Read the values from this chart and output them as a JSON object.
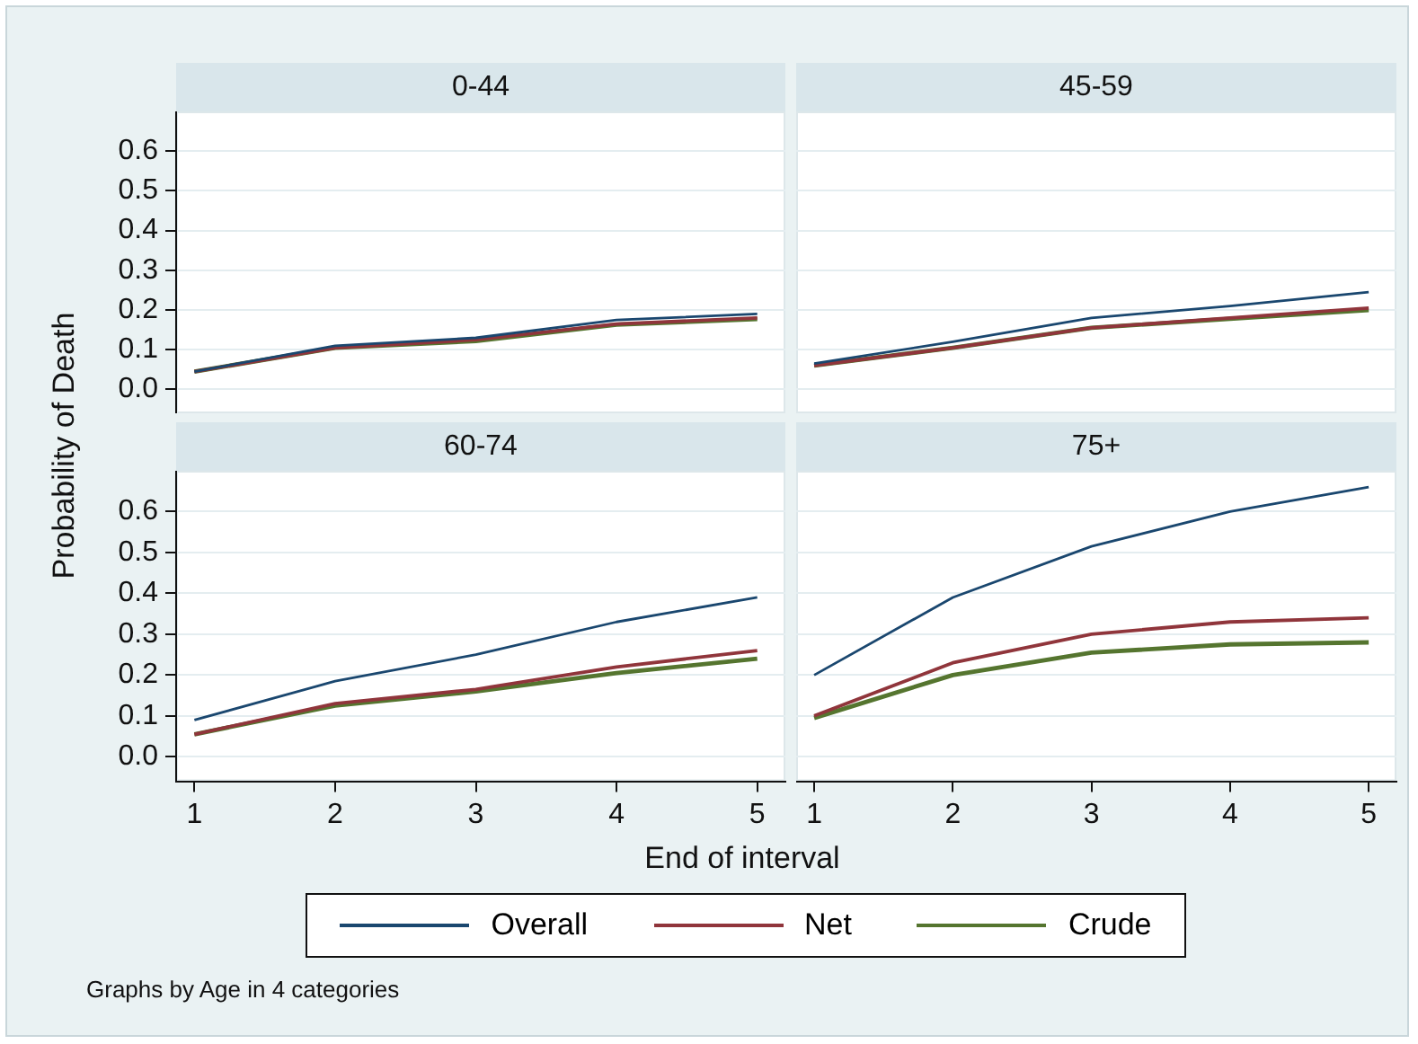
{
  "chart_data": [
    {
      "type": "line",
      "title": "0-44",
      "ylabel": "Probability of Death",
      "legend": "bottom",
      "annotations": [
        "Graphs by Age in 4 categories"
      ],
      "x": [
        1,
        2,
        3,
        4,
        5
      ],
      "xlim": [
        0.87,
        5.2
      ],
      "xticks": [
        1,
        2,
        3,
        4,
        5
      ],
      "ylim": [
        -0.06,
        0.7
      ],
      "yticks": [
        {
          "value": 0,
          "label": "0.0"
        },
        0.1,
        0.2,
        0.3,
        0.4,
        0.5,
        0.6
      ],
      "grid": "y",
      "tick_labels": "y",
      "series": [
        {
          "name": "Overall",
          "color": "#1a476f",
          "values": [
            0.045,
            0.11,
            0.13,
            0.175,
            0.19
          ]
        },
        {
          "name": "Net",
          "color": "#90353b",
          "values": [
            0.045,
            0.105,
            0.125,
            0.165,
            0.18
          ]
        },
        {
          "name": "Crude",
          "color": "#55752f",
          "values": [
            0.045,
            0.105,
            0.122,
            0.163,
            0.177
          ]
        }
      ]
    },
    {
      "type": "line",
      "title": "45-59",
      "x": [
        1,
        2,
        3,
        4,
        5
      ],
      "xlim": [
        0.87,
        5.2
      ],
      "xticks": [
        1,
        2,
        3,
        4,
        5
      ],
      "ylim": [
        -0.06,
        0.7
      ],
      "yticks": [
        0,
        0.1,
        0.2,
        0.3,
        0.4,
        0.5,
        0.6
      ],
      "grid": "y",
      "tick_labels": false,
      "series": [
        {
          "color": "#1a476f",
          "values": [
            0.065,
            0.12,
            0.18,
            0.21,
            0.245
          ]
        },
        {
          "color": "#90353b",
          "values": [
            0.06,
            0.105,
            0.155,
            0.18,
            0.205
          ]
        },
        {
          "color": "#55752f",
          "values": [
            0.06,
            0.105,
            0.155,
            0.178,
            0.2
          ]
        }
      ]
    },
    {
      "type": "line",
      "title": "60-74",
      "xlabel": "End of interval",
      "x": [
        1,
        2,
        3,
        4,
        5
      ],
      "xlim": [
        0.87,
        5.2
      ],
      "xticks": [
        1,
        2,
        3,
        4,
        5
      ],
      "ylim": [
        -0.06,
        0.7
      ],
      "yticks": [
        {
          "value": 0,
          "label": "0.0"
        },
        0.1,
        0.2,
        0.3,
        0.4,
        0.5,
        0.6
      ],
      "grid": "y",
      "series": [
        {
          "color": "#1a476f",
          "values": [
            0.09,
            0.185,
            0.25,
            0.33,
            0.39
          ]
        },
        {
          "color": "#90353b",
          "values": [
            0.055,
            0.13,
            0.165,
            0.22,
            0.26
          ]
        },
        {
          "color": "#55752f",
          "values": [
            0.055,
            0.125,
            0.16,
            0.205,
            0.24
          ]
        }
      ]
    },
    {
      "type": "line",
      "title": "75+",
      "x": [
        1,
        2,
        3,
        4,
        5
      ],
      "xlim": [
        0.87,
        5.2
      ],
      "xticks": [
        1,
        2,
        3,
        4,
        5
      ],
      "ylim": [
        -0.06,
        0.7
      ],
      "yticks": [
        0,
        0.1,
        0.2,
        0.3,
        0.4,
        0.5,
        0.6
      ],
      "grid": "y",
      "tick_labels": "x",
      "series": [
        {
          "color": "#1a476f",
          "values": [
            0.2,
            0.39,
            0.515,
            0.6,
            0.66
          ]
        },
        {
          "color": "#90353b",
          "values": [
            0.1,
            0.23,
            0.3,
            0.33,
            0.34
          ]
        },
        {
          "color": "#55752f",
          "values": [
            0.095,
            0.2,
            0.255,
            0.275,
            0.28
          ]
        }
      ]
    }
  ]
}
